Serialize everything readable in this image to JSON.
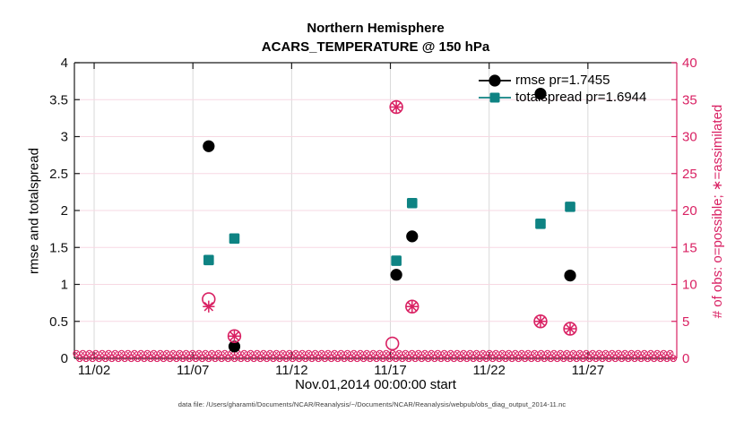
{
  "titles": {
    "line1": "Northern Hemisphere",
    "line2": "ACARS_TEMPERATURE @ 150 hPa"
  },
  "footer": "data file: /Users/gharamti/Documents/NCAR/Reanalysis/~/Documents/NCAR/Reanalysis/webpub/obs_diag_output_2014-11.nc",
  "colors": {
    "rmse": "#000000",
    "totalspread": "#0e8383",
    "obs_pink": "#d92163",
    "grid_horizontal": "#f7d8e3",
    "grid_vertical": "#d9d9d9",
    "axis_black": "#1a1a1a"
  },
  "chart_data": {
    "type": "scatter",
    "title": "Northern Hemisphere — ACARS_TEMPERATURE @ 150 hPa",
    "xlabel": "Nov.01,2014 00:00:00 start",
    "ylabel_left": "rmse and totalspread",
    "ylabel_right": "# of obs: o=possible; ∗=assimilated",
    "ylim_left": [
      0,
      4
    ],
    "yticks_left": [
      0,
      0.5,
      1,
      1.5,
      2,
      2.5,
      3,
      3.5,
      4
    ],
    "ytick_labels_left": [
      "0",
      "0.5",
      "1",
      "1.5",
      "2",
      "2.5",
      "3",
      "3.5",
      "4"
    ],
    "ylim_right": [
      0,
      40
    ],
    "yticks_right": [
      0,
      5,
      10,
      15,
      20,
      25,
      30,
      35,
      40
    ],
    "ytick_labels_right": [
      "0",
      "5",
      "10",
      "15",
      "20",
      "25",
      "30",
      "35",
      "40"
    ],
    "xlim_days_from_nov1": [
      0,
      30.5
    ],
    "x_ticks": [
      {
        "label": "11/02",
        "day": 1
      },
      {
        "label": "11/07",
        "day": 6
      },
      {
        "label": "11/12",
        "day": 11
      },
      {
        "label": "11/17",
        "day": 16
      },
      {
        "label": "11/22",
        "day": 21
      },
      {
        "label": "11/27",
        "day": 26
      }
    ],
    "grid": true,
    "legend_position": "top-right-inside",
    "legend": [
      {
        "label": "rmse pr=1.7455",
        "marker": "filled-circle-on-line",
        "color": "#000000"
      },
      {
        "label": "totalspread pr=1.6944",
        "marker": "filled-square-on-line",
        "color": "#0e8383"
      }
    ],
    "series": [
      {
        "name": "rmse",
        "axis": "left",
        "marker": "filled-circle",
        "color": "#000000",
        "points": [
          {
            "date": "11/08",
            "day": 6.8,
            "value": 2.87
          },
          {
            "date": "11/09",
            "day": 8.1,
            "value": 0.16
          },
          {
            "date": "11/17",
            "day": 16.3,
            "value": 1.13
          },
          {
            "date": "11/18",
            "day": 17.1,
            "value": 1.65
          },
          {
            "date": "11/25",
            "day": 23.6,
            "value": 3.58
          },
          {
            "date": "11/26",
            "day": 25.1,
            "value": 1.12
          }
        ]
      },
      {
        "name": "totalspread",
        "axis": "left",
        "marker": "filled-square",
        "color": "#0e8383",
        "points": [
          {
            "date": "11/08",
            "day": 6.8,
            "value": 1.33
          },
          {
            "date": "11/09",
            "day": 8.1,
            "value": 1.62
          },
          {
            "date": "11/17",
            "day": 16.3,
            "value": 1.32
          },
          {
            "date": "11/18",
            "day": 17.1,
            "value": 2.1
          },
          {
            "date": "11/25",
            "day": 23.6,
            "value": 1.82
          },
          {
            "date": "11/26",
            "day": 25.1,
            "value": 2.05
          }
        ]
      },
      {
        "name": "possible",
        "axis": "right",
        "marker": "open-circle",
        "color": "#d92163",
        "points": [
          {
            "date": "11/08",
            "day": 6.8,
            "value": 8
          },
          {
            "date": "11/09",
            "day": 8.1,
            "value": 3
          },
          {
            "date": "11/17",
            "day": 16.1,
            "value": 2
          },
          {
            "date": "11/17",
            "day": 16.3,
            "value": 34
          },
          {
            "date": "11/18",
            "day": 17.1,
            "value": 7
          },
          {
            "date": "11/25",
            "day": 23.6,
            "value": 5
          },
          {
            "date": "11/26",
            "day": 25.1,
            "value": 4
          }
        ]
      },
      {
        "name": "assimilated",
        "axis": "right",
        "marker": "asterisk",
        "color": "#d92163",
        "points": [
          {
            "date": "11/08",
            "day": 6.8,
            "value": 7
          },
          {
            "date": "11/09",
            "day": 8.1,
            "value": 3
          },
          {
            "date": "11/17",
            "day": 16.3,
            "value": 34
          },
          {
            "date": "11/18",
            "day": 17.1,
            "value": 7
          },
          {
            "date": "11/25",
            "day": 23.6,
            "value": 5
          },
          {
            "date": "11/26",
            "day": 25.1,
            "value": 4
          }
        ]
      }
    ],
    "zero_obs_band": {
      "note": "dense row of o and asterisk markers at count 0 for all other 6-hourly times",
      "value": 0,
      "start_day": 0.1,
      "end_day": 30.45
    }
  }
}
